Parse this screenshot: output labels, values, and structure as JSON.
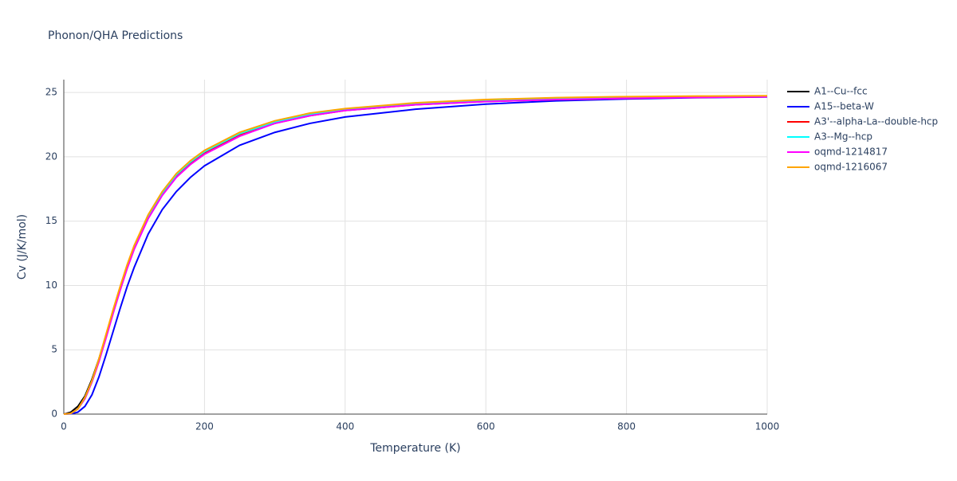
{
  "chart_data": {
    "type": "line",
    "title": "Phonon/QHA Predictions",
    "x_label": "Temperature (K)",
    "y_label": "Cv (J/K/mol)",
    "x": [
      0,
      10,
      20,
      30,
      40,
      50,
      60,
      70,
      80,
      90,
      100,
      120,
      140,
      160,
      180,
      200,
      250,
      300,
      350,
      400,
      500,
      600,
      700,
      800,
      900,
      1000
    ],
    "xlim": [
      0,
      1000
    ],
    "xticks": [
      0,
      200,
      400,
      600,
      800,
      1000
    ],
    "ylim": [
      0,
      26
    ],
    "yticks": [
      0,
      5,
      10,
      15,
      20,
      25
    ],
    "grid": true,
    "series": [
      {
        "name": "A1--Cu--fcc",
        "color": "#000000",
        "values": [
          0,
          0.15,
          0.6,
          1.4,
          2.7,
          4.3,
          6.1,
          8.0,
          9.8,
          11.5,
          13.0,
          15.4,
          17.2,
          18.6,
          19.6,
          20.4,
          21.8,
          22.7,
          23.3,
          23.65,
          24.1,
          24.35,
          24.5,
          24.6,
          24.65,
          24.7
        ]
      },
      {
        "name": "A15--beta-W",
        "color": "#0000ff",
        "values": [
          0,
          0.02,
          0.15,
          0.6,
          1.5,
          2.9,
          4.6,
          6.4,
          8.2,
          9.9,
          11.4,
          14.0,
          15.9,
          17.3,
          18.4,
          19.3,
          20.9,
          21.9,
          22.6,
          23.1,
          23.7,
          24.1,
          24.35,
          24.5,
          24.6,
          24.65
        ]
      },
      {
        "name": "A3'--alpha-La--double-hcp",
        "color": "#ff0000",
        "values": [
          0,
          0.05,
          0.4,
          1.2,
          2.5,
          4.1,
          6.0,
          7.9,
          9.7,
          11.4,
          12.9,
          15.3,
          17.1,
          18.5,
          19.5,
          20.3,
          21.7,
          22.6,
          23.2,
          23.6,
          24.05,
          24.3,
          24.45,
          24.55,
          24.62,
          24.67
        ]
      },
      {
        "name": "A3--Mg--hcp",
        "color": "#00ffff",
        "values": [
          0,
          0.05,
          0.4,
          1.2,
          2.5,
          4.2,
          6.1,
          8.0,
          9.8,
          11.5,
          13.0,
          15.4,
          17.2,
          18.6,
          19.6,
          20.4,
          21.8,
          22.7,
          23.3,
          23.65,
          24.1,
          24.35,
          24.5,
          24.6,
          24.65,
          24.7
        ]
      },
      {
        "name": "oqmd-1214817",
        "color": "#ff00ff",
        "values": [
          0,
          0.05,
          0.4,
          1.2,
          2.5,
          4.1,
          5.9,
          7.8,
          9.6,
          11.3,
          12.8,
          15.2,
          17.0,
          18.4,
          19.4,
          20.2,
          21.6,
          22.6,
          23.2,
          23.6,
          24.05,
          24.3,
          24.45,
          24.55,
          24.62,
          24.67
        ]
      },
      {
        "name": "oqmd-1216067",
        "color": "#ffa500",
        "values": [
          0,
          0.05,
          0.4,
          1.3,
          2.6,
          4.3,
          6.2,
          8.1,
          9.9,
          11.6,
          13.1,
          15.5,
          17.3,
          18.7,
          19.7,
          20.5,
          21.9,
          22.8,
          23.4,
          23.75,
          24.2,
          24.45,
          24.6,
          24.68,
          24.72,
          24.75
        ]
      }
    ]
  }
}
